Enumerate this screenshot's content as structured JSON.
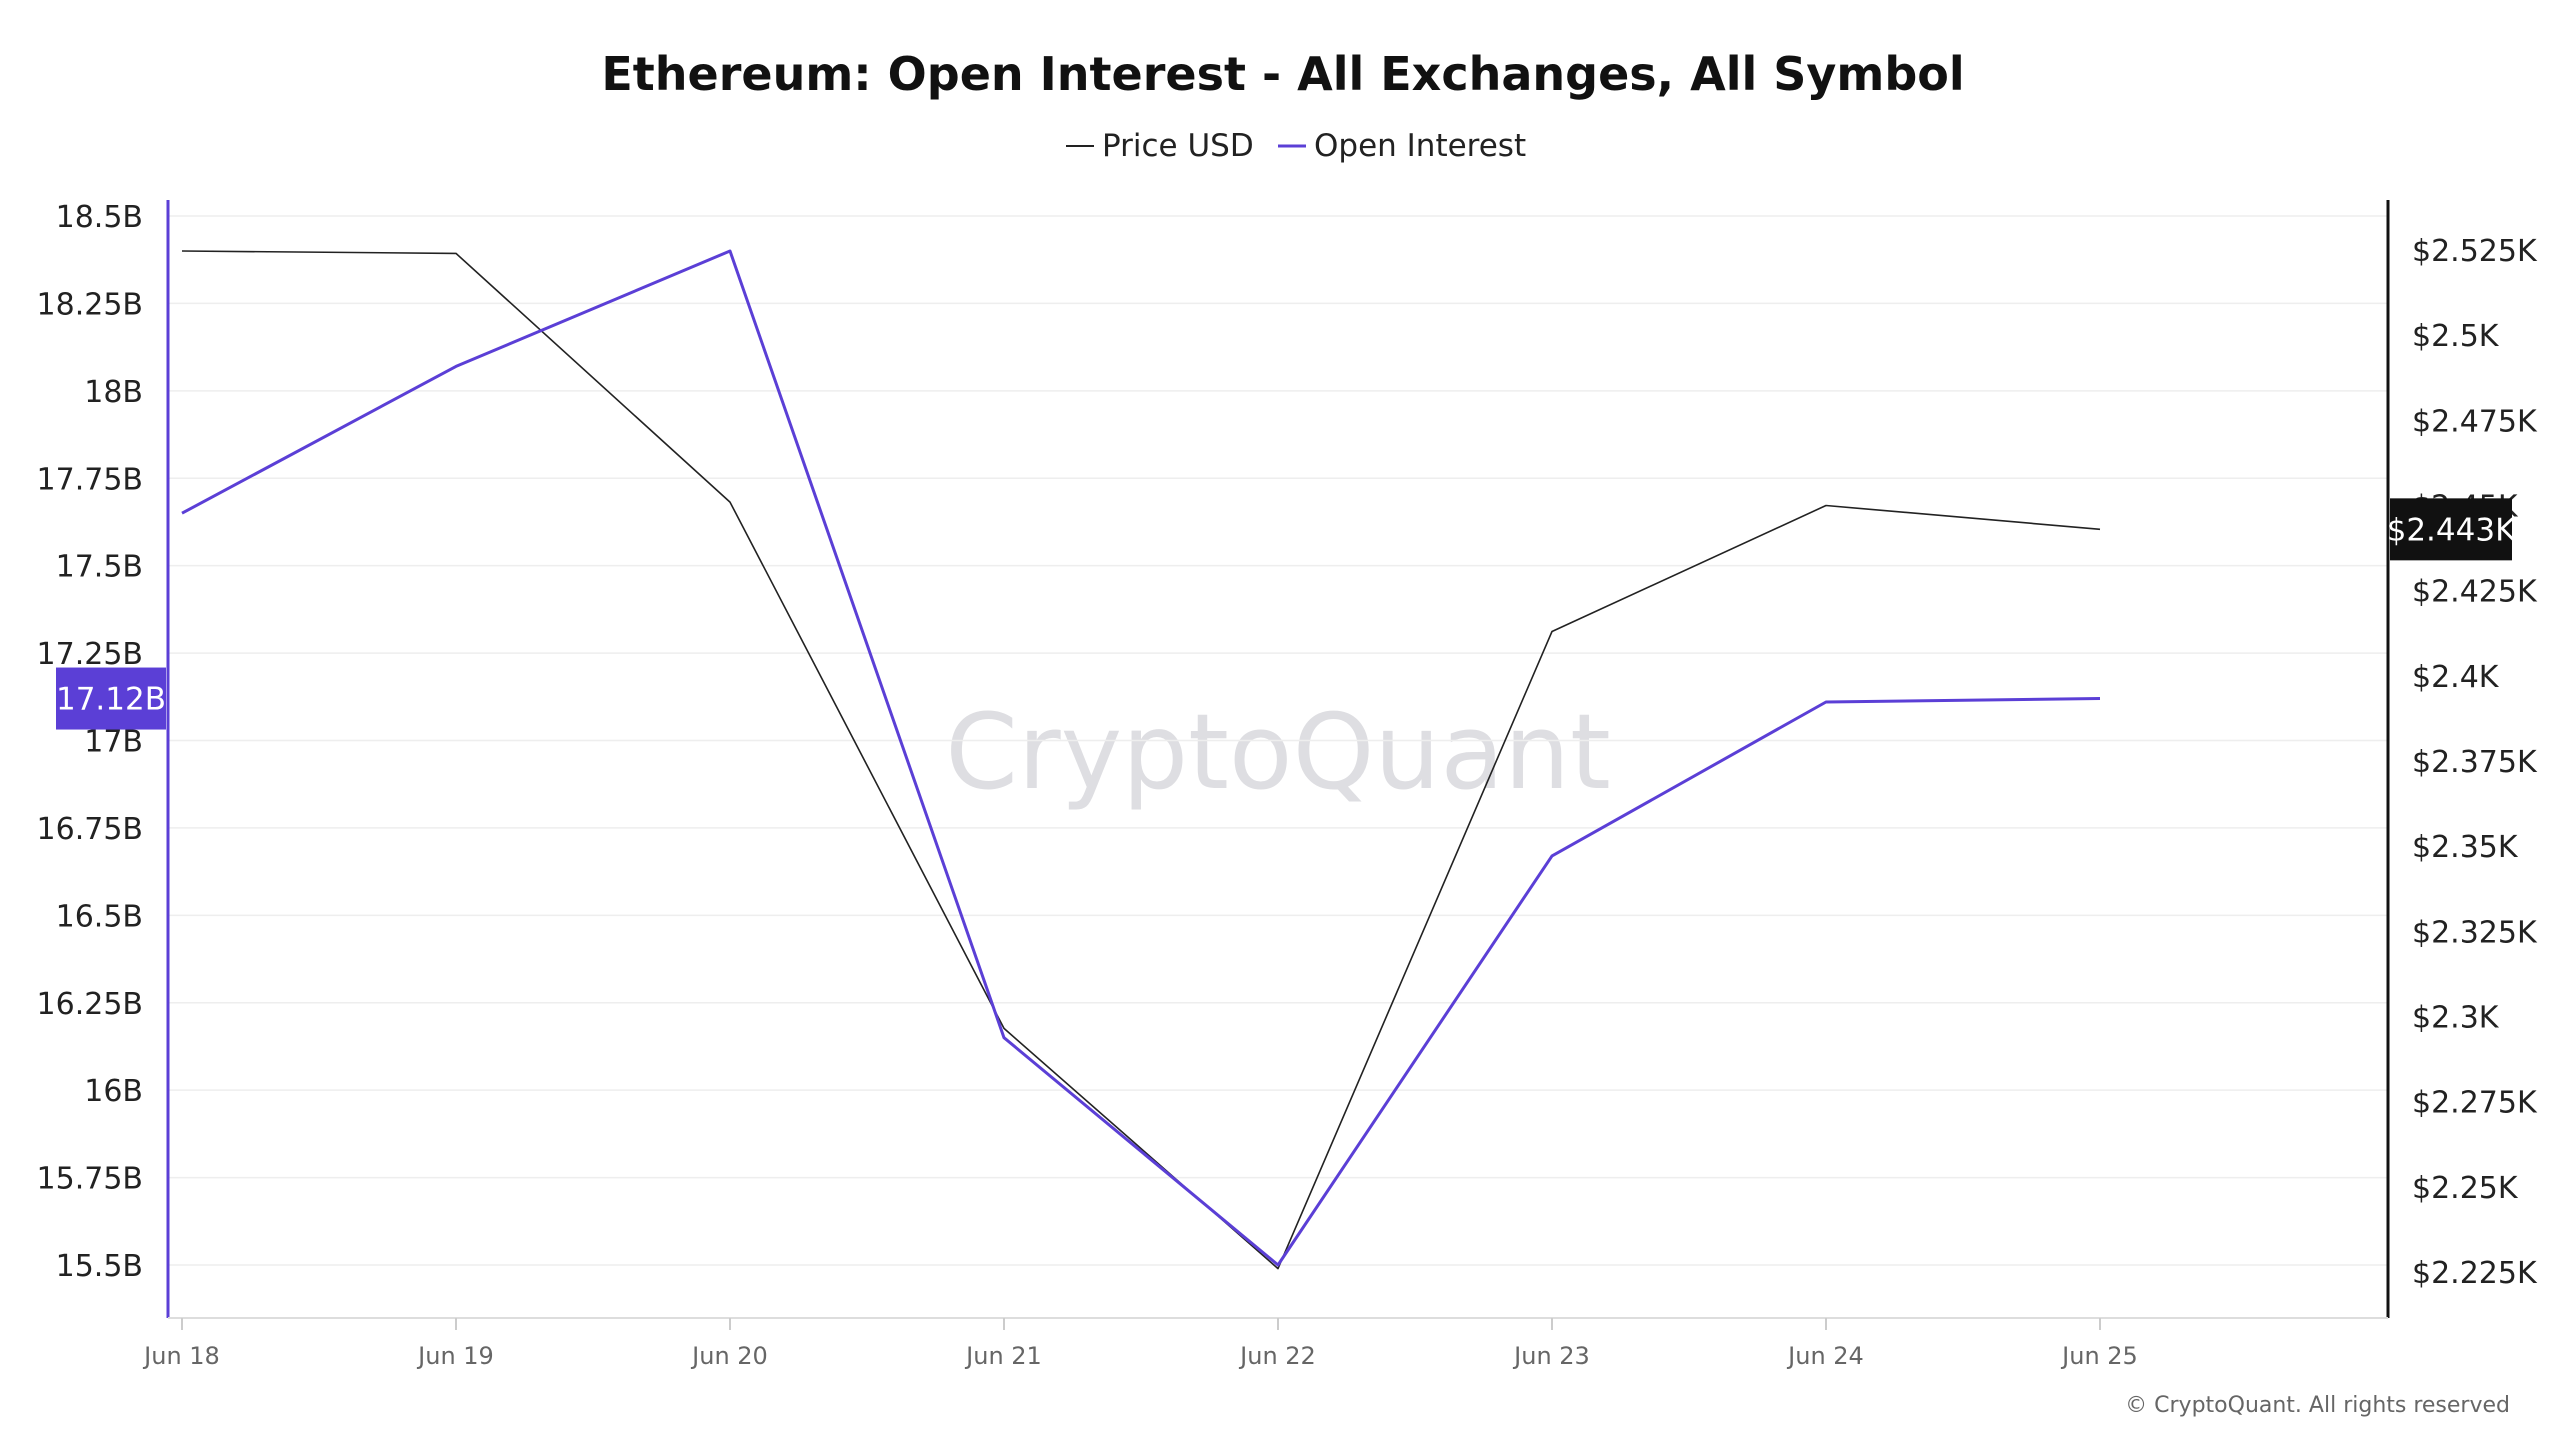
{
  "chart_data": {
    "type": "line",
    "title": "Ethereum: Open Interest - All Exchanges, All Symbol",
    "categories": [
      "Jun 18",
      "Jun 19",
      "Jun 20",
      "Jun 21",
      "Jun 22",
      "Jun 23",
      "Jun 24",
      "Jun 25"
    ],
    "series": [
      {
        "name": "Price USD",
        "axis": "right",
        "color": "#222222",
        "values": [
          2524.7,
          2524.0,
          2451.0,
          2296.5,
          2226.0,
          2413.0,
          2450.0,
          2443.0
        ]
      },
      {
        "name": "Open Interest",
        "axis": "left",
        "color": "#5b3fd6",
        "values": [
          17.65,
          18.07,
          18.4,
          16.15,
          15.5,
          16.67,
          17.11,
          17.12
        ]
      }
    ],
    "left_axis": {
      "min": 15.5,
      "max": 18.5,
      "ticks": [
        "18.5B",
        "18.25B",
        "18B",
        "17.75B",
        "17.5B",
        "17.25B",
        "17B",
        "16.75B",
        "16.5B",
        "16.25B",
        "16B",
        "15.75B",
        "15.5B"
      ],
      "current_label": "17.12B",
      "current_value": 17.12
    },
    "right_axis": {
      "min": 2225,
      "max": 2525,
      "ticks": [
        "$2.525K",
        "$2.5K",
        "$2.475K",
        "$2.45K",
        "$2.425K",
        "$2.4K",
        "$2.375K",
        "$2.35K",
        "$2.325K",
        "$2.3K",
        "$2.275K",
        "$2.25K",
        "$2.225K"
      ],
      "current_label": "$2.443K",
      "current_value": 2443
    },
    "grid": true,
    "legend": "top-center"
  },
  "watermark": "CryptoQuant",
  "copyright": "© CryptoQuant. All rights reserved",
  "colors": {
    "price_line": "#222222",
    "oi_line": "#5b3fd6",
    "left_axis": "#5b3fd6",
    "right_axis": "#111111",
    "oi_badge": "#5b3fd6",
    "price_badge": "#111111",
    "grid": "#eeeeee"
  }
}
